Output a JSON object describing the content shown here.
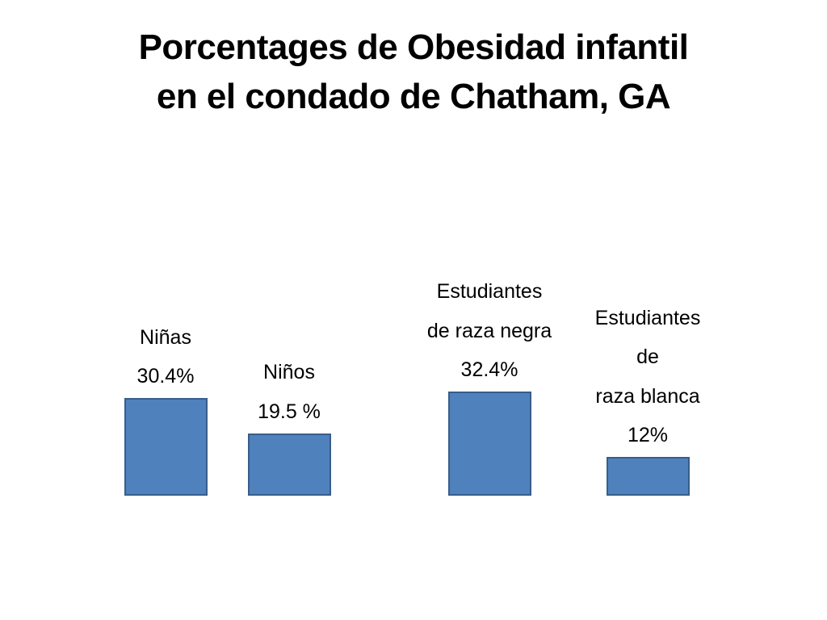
{
  "slide": {
    "title_lines": [
      "Porcentages de Obesidad infantil",
      "en el condado de Chatham, GA"
    ]
  },
  "colors": {
    "bar_fill": "#4f81bd",
    "bar_border": "#385d8a"
  },
  "chart_data": {
    "type": "bar",
    "title": "",
    "xlabel": "",
    "ylabel": "",
    "ylim": [
      0,
      35
    ],
    "grid": false,
    "legend": "none",
    "categories": [
      "Niñas",
      "Niños",
      "Estudiantes de raza negra",
      "Estudiantes de raza blanca"
    ],
    "values": [
      30.4,
      19.5,
      32.4,
      12
    ],
    "labels": [
      [
        "Niñas",
        "30.4%"
      ],
      [
        "Niños",
        "19.5 %"
      ],
      [
        "Estudiantes",
        "de raza negra",
        "32.4%"
      ],
      [
        "Estudiantes",
        "de",
        "raza blanca",
        "12%"
      ]
    ]
  }
}
